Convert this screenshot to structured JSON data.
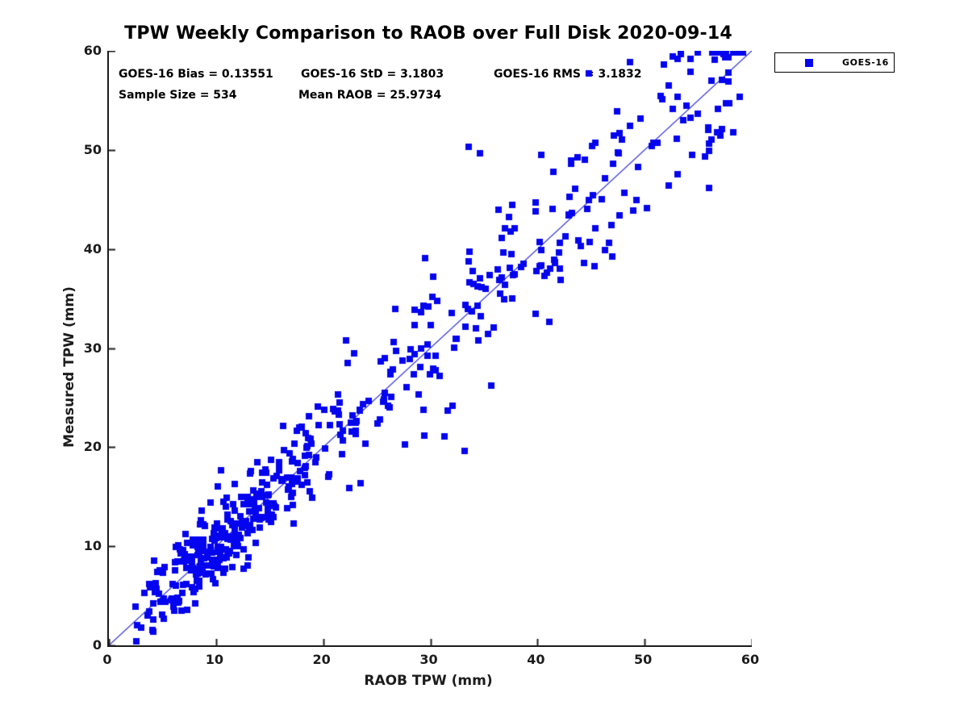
{
  "title": "TPW Weekly Comparison to RAOB over Full Disk 2020-09-14",
  "stats": {
    "bias": "GOES-16 Bias = 0.13551",
    "std": "GOES-16 StD = 3.1803",
    "rms": "GOES-16 RMS = 3.1832",
    "sample_size": "Sample Size = 534",
    "mean_raob": "Mean RAOB = 25.9734"
  },
  "legend": {
    "label": "GOES-16",
    "marker_color": "#0404ee"
  },
  "colors": {
    "marker": "#0404ee",
    "reference_line": "#2828d8",
    "axis": "#1c1c1c",
    "text": "#000000"
  },
  "chart_data": {
    "type": "scatter",
    "title": "TPW Weekly Comparison to RAOB over Full Disk 2020-09-14",
    "xlabel": "RAOB TPW (mm)",
    "ylabel": "Measured TPW (mm)",
    "xlim": [
      0,
      60
    ],
    "ylim": [
      0,
      60
    ],
    "xticks": [
      0,
      10,
      20,
      30,
      40,
      50,
      60
    ],
    "yticks": [
      0,
      10,
      20,
      30,
      40,
      50,
      60
    ],
    "grid": false,
    "legend_position": "outside-top-right",
    "reference_line": {
      "from": [
        0,
        0
      ],
      "to": [
        60,
        60
      ],
      "color": "#2828d8"
    },
    "annotations": [
      "GOES-16 Bias = 0.13551",
      "GOES-16 StD = 3.1803",
      "GOES-16 RMS = 3.1832",
      "Sample Size = 534",
      "Mean RAOB = 25.9734"
    ],
    "series": [
      {
        "name": "GOES-16",
        "marker": "square",
        "color": "#0404ee",
        "n_points": 534,
        "summary": {
          "bias": 0.13551,
          "std": 3.1803,
          "rms": 3.1832,
          "sample_size": 534,
          "mean_raob": 25.9734
        },
        "points_explicit": [
          [
            33.6,
            50.3
          ],
          [
            34.6,
            49.7
          ],
          [
            44.8,
            57.7
          ],
          [
            48.6,
            58.9
          ],
          [
            52.6,
            59.4
          ],
          [
            53.4,
            59.7
          ],
          [
            54.3,
            59.2
          ],
          [
            56.2,
            57.0
          ],
          [
            57.8,
            56.9
          ],
          [
            58.9,
            55.4
          ],
          [
            55.9,
            52.3
          ],
          [
            57.2,
            52.1
          ],
          [
            33.2,
            19.6
          ],
          [
            29.4,
            21.2
          ],
          [
            31.3,
            21.1
          ],
          [
            27.6,
            20.3
          ],
          [
            31.6,
            23.7
          ],
          [
            32.1,
            24.2
          ],
          [
            10.5,
            17.7
          ],
          [
            22.4,
            15.9
          ],
          [
            23.5,
            16.4
          ],
          [
            5.1,
            2.7
          ],
          [
            2.5,
            3.9
          ],
          [
            48.9,
            43.9
          ],
          [
            56.0,
            46.2
          ],
          [
            50.2,
            44.1
          ],
          [
            22.3,
            28.5
          ],
          [
            30.3,
            37.2
          ]
        ],
        "generator": {
          "seed": 1337,
          "count": 506,
          "bias": 0.135,
          "noise_base": 1.55,
          "noise_slope": 0.05,
          "max_dev": 9.5,
          "y_min": 0.4,
          "y_max": 59.8,
          "clusters": [
            {
              "weight": 0.47,
              "min": 2.3,
              "max": 20.0,
              "shape": "triangular",
              "power": 1.15
            },
            {
              "weight": 0.33,
              "min": 17.0,
              "max": 42.0,
              "shape": "uniform",
              "power": 1.0
            },
            {
              "weight": 0.2,
              "min": 40.0,
              "max": 59.3,
              "shape": "uniform",
              "power": 1.0
            }
          ]
        }
      }
    ]
  }
}
